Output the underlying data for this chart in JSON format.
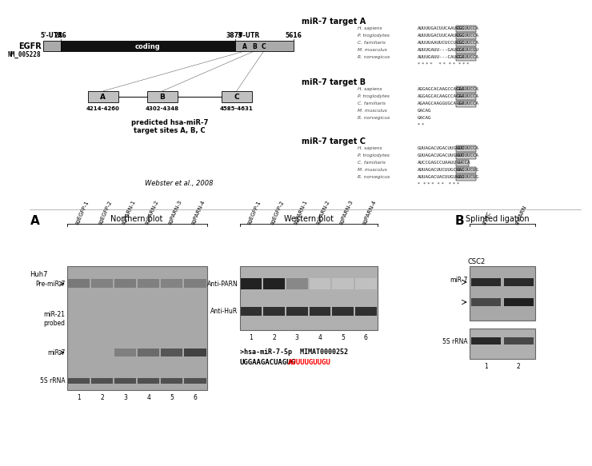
{
  "fig_width": 6.99,
  "fig_height": 5.64,
  "bg_color": "#ffffff",
  "egfr_diagram": {
    "utr5_label": "5'-UTR",
    "utr3_label": "3'-UTR",
    "coding_label": "coding",
    "pos246": "246",
    "pos3879": "3879",
    "pos5616": "5616",
    "egfr_label": "EGFR",
    "nm_label": "NM_005228",
    "sites": [
      "A",
      "B",
      "C"
    ],
    "site_ranges": [
      "4214-4260",
      "4302-4348",
      "4585-4631"
    ],
    "predicted_label": "predicted hsa-miR-7\ntarget sites A, B, C",
    "citation": "Webster et al., 2008"
  },
  "mir7_targets": {
    "target_A_label": "miR-7 target A",
    "target_B_label": "miR-7 target B",
    "target_C_label": "miR-7 target C",
    "species": [
      "H. sapiens",
      "P. troglodytes",
      "C. familiaris",
      "M. musculus",
      "R. norvegicus"
    ],
    "target_A_seqs_left": [
      "AUUUUGACUUCAAUGGG",
      "AUUUUGACUUCAAUGGG",
      "AUUUUAAUUCUCCUGGG",
      "AUUUGAUU---GAUGCA",
      "AUUUGAUU---CAUGCA"
    ],
    "target_A_seqs_right": [
      "CGCUUCCA",
      "CGCUUCCA",
      "CGCUUCCA",
      "CGCUUCGU",
      "CGCUUCCA"
    ],
    "target_A_stars": "* * * *    * *  * *  * * *",
    "target_B_seqs_left": [
      "AGGAGCACAAGCCACAA",
      "AGGAGCACAAGCCACAA",
      "AGAAGCAAGGUGCA-GA",
      "GACAG",
      "GACAG"
    ],
    "target_B_seqs_right": [
      "GGCUUCCA",
      "GGCUUCCA",
      "GGCUUCCA",
      "",
      ""
    ],
    "target_B_stars": "* *",
    "target_C_seqs_left": [
      "GUUAGACUGACUUGUUU",
      "GUUAGACUGACUUGUUU",
      "AUCCGAGCCUAAUU---",
      "AUUAGACUUCUUGCUAG",
      "AUUAGACUACUUGUUAG"
    ],
    "target_C_seqs_right": [
      "GGCUUCCA",
      "GGCUUCCA",
      "UUCCA",
      "GGCUUCUG",
      "GGUUUCUG"
    ],
    "target_C_stars": "*  * * *  * *   * * *"
  },
  "panel_A_label": "A",
  "panel_B_label": "B",
  "northern_blot_label": "Northern blot",
  "western_blot_label": "Western blot",
  "splinted_ligation_label": "Splinted ligation",
  "northern_columns": [
    "sgEGFP-1",
    "sgEGFP-2",
    "sgPARN-1",
    "sgPARN-2",
    "sgPARN-3",
    "sgPARN-4"
  ],
  "western_columns": [
    "sgEGFP-1",
    "sgEGFP-2",
    "sgPARN-1",
    "sgPARN-2",
    "sgPARN-3",
    "sgPARN-4"
  ],
  "splinted_columns": [
    "shNC",
    "shPARN"
  ],
  "cell_line_N": "Huh7",
  "cell_line_S": "CSC2",
  "northern_row_labels": [
    "Pre-miR-7",
    "miR-21\nprobed",
    "miR-7",
    "5S rRNA"
  ],
  "western_row_labels": [
    "Anti-PARN",
    "Anti-HuR"
  ],
  "splinted_row_labels": [
    "miR-7",
    "5S rRNA"
  ],
  "mir7_sequence_label": ">hsa-miR-7-5p  MIMAT0000252",
  "mir7_sequence_black": "UGGAAGACUAGUG",
  "mir7_sequence_red": "AUUUUGUUGU",
  "color_gray_bg": "#c0c0c0",
  "color_black": "#000000",
  "color_white": "#ffffff",
  "color_red": "#ff0000"
}
